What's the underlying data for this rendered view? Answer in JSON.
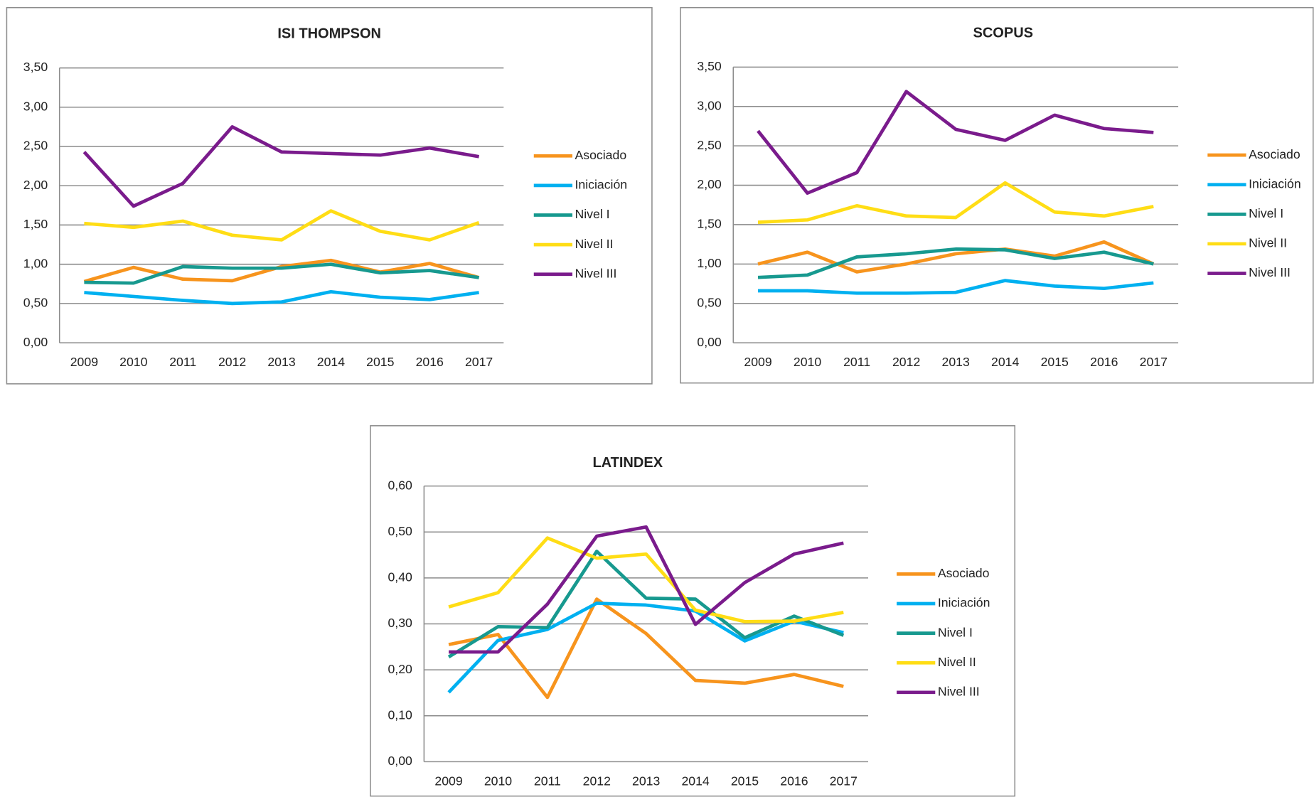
{
  "chart_data": [
    {
      "type": "line",
      "title": "ISI THOMPSON",
      "categories": [
        "2009",
        "2010",
        "2011",
        "2012",
        "2013",
        "2014",
        "2015",
        "2016",
        "2017"
      ],
      "series": [
        {
          "name": "Asociado",
          "color": "#f7941d",
          "values": [
            0.78,
            0.96,
            0.81,
            0.79,
            0.97,
            1.05,
            0.9,
            1.01,
            0.83
          ]
        },
        {
          "name": "Iniciación",
          "color": "#00b0f0",
          "values": [
            0.64,
            0.59,
            0.54,
            0.5,
            0.52,
            0.65,
            0.58,
            0.55,
            0.64
          ]
        },
        {
          "name": "Nivel I",
          "color": "#17998f",
          "values": [
            0.77,
            0.76,
            0.97,
            0.95,
            0.95,
            1.0,
            0.89,
            0.92,
            0.83
          ]
        },
        {
          "name": "Nivel II",
          "color": "#ffdd15",
          "values": [
            1.52,
            1.47,
            1.55,
            1.37,
            1.31,
            1.68,
            1.42,
            1.31,
            1.53
          ]
        },
        {
          "name": "Nivel III",
          "color": "#7a1b8c",
          "values": [
            2.43,
            1.74,
            2.03,
            2.75,
            2.43,
            2.41,
            2.39,
            2.48,
            2.37
          ]
        }
      ],
      "ylim": [
        0,
        3.5
      ],
      "yticks": [
        {
          "value": 0,
          "label": "0,00"
        },
        {
          "value": 0.5,
          "label": "0,50"
        },
        {
          "value": 1,
          "label": "1,00"
        },
        {
          "value": 1.5,
          "label": "1,50"
        },
        {
          "value": 2,
          "label": "2,00"
        },
        {
          "value": 2.5,
          "label": "2,50"
        },
        {
          "value": 3,
          "label": "3,00"
        },
        {
          "value": 3.5,
          "label": "3,50"
        }
      ],
      "grid": true,
      "legend": "right"
    },
    {
      "type": "line",
      "title": "SCOPUS",
      "categories": [
        "2009",
        "2010",
        "2011",
        "2012",
        "2013",
        "2014",
        "2015",
        "2016",
        "2017"
      ],
      "series": [
        {
          "name": "Asociado",
          "color": "#f7941d",
          "values": [
            1.0,
            1.15,
            0.9,
            1.0,
            1.13,
            1.19,
            1.1,
            1.28,
            1.0
          ]
        },
        {
          "name": "Iniciación",
          "color": "#00b0f0",
          "values": [
            0.66,
            0.66,
            0.63,
            0.63,
            0.64,
            0.79,
            0.72,
            0.69,
            0.76
          ]
        },
        {
          "name": "Nivel I",
          "color": "#17998f",
          "values": [
            0.83,
            0.86,
            1.09,
            1.13,
            1.19,
            1.18,
            1.07,
            1.15,
            1.0
          ]
        },
        {
          "name": "Nivel II",
          "color": "#ffdd15",
          "values": [
            1.53,
            1.56,
            1.74,
            1.61,
            1.59,
            2.03,
            1.66,
            1.61,
            1.73
          ]
        },
        {
          "name": "Nivel III",
          "color": "#7a1b8c",
          "values": [
            2.69,
            1.9,
            2.16,
            3.19,
            2.71,
            2.57,
            2.89,
            2.72,
            2.67
          ]
        }
      ],
      "ylim": [
        0,
        3.5
      ],
      "yticks": [
        {
          "value": 0,
          "label": "0,00"
        },
        {
          "value": 0.5,
          "label": "0,50"
        },
        {
          "value": 1,
          "label": "1,00"
        },
        {
          "value": 1.5,
          "label": "1,50"
        },
        {
          "value": 2,
          "label": "2,00"
        },
        {
          "value": 2.5,
          "label": "2,50"
        },
        {
          "value": 3,
          "label": "3,00"
        },
        {
          "value": 3.5,
          "label": "3,50"
        }
      ],
      "grid": true,
      "legend": "right"
    },
    {
      "type": "line",
      "title": "LATINDEX",
      "categories": [
        "2009",
        "2010",
        "2011",
        "2012",
        "2013",
        "2014",
        "2015",
        "2016",
        "2017"
      ],
      "series": [
        {
          "name": "Asociado",
          "color": "#f7941d",
          "values": [
            0.255,
            0.277,
            0.14,
            0.354,
            0.279,
            0.177,
            0.171,
            0.19,
            0.164
          ]
        },
        {
          "name": "Iniciación",
          "color": "#00b0f0",
          "values": [
            0.151,
            0.264,
            0.288,
            0.345,
            0.341,
            0.328,
            0.263,
            0.306,
            0.281
          ]
        },
        {
          "name": "Nivel I",
          "color": "#17998f",
          "values": [
            0.228,
            0.294,
            0.292,
            0.458,
            0.356,
            0.354,
            0.27,
            0.317,
            0.275
          ]
        },
        {
          "name": "Nivel II",
          "color": "#ffdd15",
          "values": [
            0.337,
            0.368,
            0.487,
            0.443,
            0.452,
            0.33,
            0.305,
            0.306,
            0.325
          ]
        },
        {
          "name": "Nivel III",
          "color": "#7a1b8c",
          "values": [
            0.239,
            0.239,
            0.343,
            0.491,
            0.511,
            0.299,
            0.39,
            0.452,
            0.476
          ]
        }
      ],
      "ylim": [
        0,
        0.6
      ],
      "yticks": [
        {
          "value": 0,
          "label": "0,00"
        },
        {
          "value": 0.1,
          "label": "0,10"
        },
        {
          "value": 0.2,
          "label": "0,20"
        },
        {
          "value": 0.3,
          "label": "0,30"
        },
        {
          "value": 0.4,
          "label": "0,40"
        },
        {
          "value": 0.5,
          "label": "0,50"
        },
        {
          "value": 0.6,
          "label": "0,60"
        }
      ],
      "grid": true,
      "legend": "right"
    }
  ]
}
